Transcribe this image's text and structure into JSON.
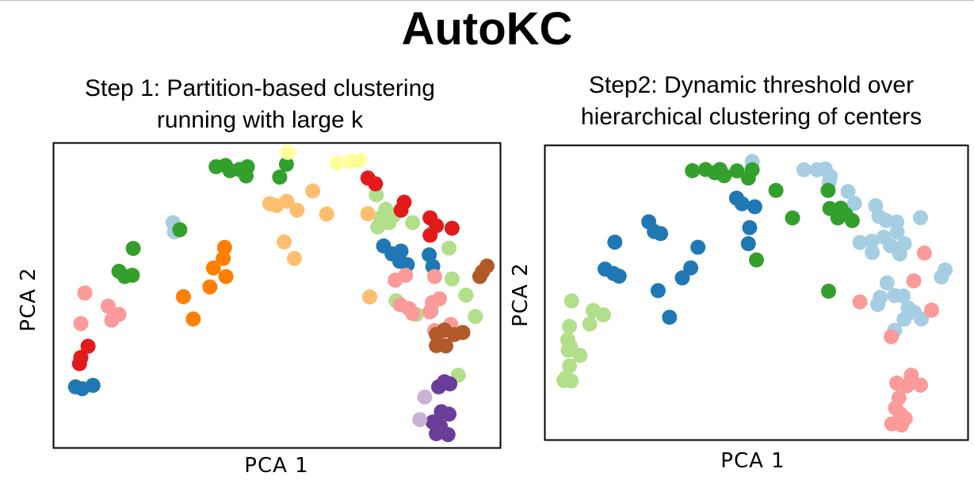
{
  "title": "AutoKC",
  "chart_data": [
    {
      "type": "scatter",
      "title": "Step 1: Partition-based clustering running with large k",
      "title_lines": [
        "Step 1: Partition-based clustering",
        "running with large k"
      ],
      "xlabel": "PCA 1",
      "ylabel": "PCA 2",
      "xlim": [
        0,
        100
      ],
      "ylim": [
        0,
        100
      ],
      "ticks": false,
      "grid": false,
      "legend": false,
      "series": [
        {
          "color": "#1f78b4",
          "points": [
            [
              8.9,
              20.6
            ],
            [
              5.0,
              20.1
            ],
            [
              6.5,
              19.5
            ],
            [
              73.8,
              66.2
            ],
            [
              75.7,
              63.6
            ],
            [
              77.7,
              64.5
            ],
            [
              79.1,
              60.1
            ],
            [
              84.0,
              63.3
            ],
            [
              84.8,
              59.5
            ],
            [
              77.4,
              61.2
            ]
          ]
        },
        {
          "color": "#a6cee3",
          "points": [
            [
              26.8,
              73.8
            ],
            [
              27.1,
              70.8
            ],
            [
              84.5,
              45.0
            ]
          ]
        },
        {
          "color": "#33a02c",
          "points": [
            [
              36.4,
              92.1
            ],
            [
              38.5,
              92.5
            ],
            [
              39.5,
              90.8
            ],
            [
              41.6,
              91.2
            ],
            [
              43.4,
              92.1
            ],
            [
              43.1,
              89.1
            ],
            [
              52.1,
              92.9
            ],
            [
              50.6,
              88.7
            ],
            [
              17.9,
              65.4
            ],
            [
              14.7,
              57.9
            ],
            [
              16.0,
              56.2
            ],
            [
              17.7,
              56.6
            ],
            [
              28.3,
              71.5
            ]
          ]
        },
        {
          "color": "#b2df8a",
          "points": [
            [
              72.2,
              82.9
            ],
            [
              73.2,
              75.4
            ],
            [
              74.3,
              78.2
            ],
            [
              76.1,
              76.2
            ],
            [
              75.0,
              73.8
            ],
            [
              72.5,
              72.4
            ],
            [
              80.3,
              73.8
            ],
            [
              88.4,
              65.5
            ],
            [
              89.1,
              55.4
            ],
            [
              92.2,
              50.1
            ],
            [
              76.6,
              48.3
            ],
            [
              81.1,
              43.8
            ],
            [
              94.3,
              43.1
            ],
            [
              85.6,
              37.2
            ],
            [
              90.5,
              23.9
            ]
          ]
        },
        {
          "color": "#e31a1c",
          "points": [
            [
              7.8,
              33.4
            ],
            [
              6.2,
              29.7
            ],
            [
              5.9,
              27.7
            ],
            [
              70.3,
              88.4
            ],
            [
              72.0,
              86.5
            ],
            [
              78.4,
              80.5
            ],
            [
              77.7,
              77.9
            ],
            [
              84.2,
              75.4
            ],
            [
              84.2,
              69.7
            ],
            [
              85.6,
              72.8
            ],
            [
              89.1,
              72.0
            ]
          ]
        },
        {
          "color": "#fb9a99",
          "points": [
            [
              7.1,
              50.8
            ],
            [
              12.3,
              46.5
            ],
            [
              14.7,
              43.8
            ],
            [
              13.1,
              41.9
            ],
            [
              6.2,
              40.8
            ],
            [
              78.7,
              56.6
            ],
            [
              76.4,
              55.0
            ],
            [
              85.2,
              56.2
            ],
            [
              77.5,
              47.0
            ],
            [
              84.7,
              47.7
            ],
            [
              86.3,
              48.9
            ],
            [
              79.5,
              45.7
            ],
            [
              84.1,
              44.6
            ],
            [
              80.3,
              44.1
            ],
            [
              88.8,
              40.5
            ],
            [
              85.2,
              38.5
            ],
            [
              86.5,
              37.5
            ]
          ]
        },
        {
          "color": "#ff7f00",
          "points": [
            [
              38.3,
              65.7
            ],
            [
              38.0,
              62.1
            ],
            [
              35.8,
              59.0
            ],
            [
              38.6,
              56.2
            ],
            [
              35.0,
              52.8
            ],
            [
              29.1,
              49.6
            ],
            [
              31.3,
              42.3
            ]
          ]
        },
        {
          "color": "#fdbf6f",
          "points": [
            [
              58.0,
              84.2
            ],
            [
              52.2,
              80.8
            ],
            [
              48.4,
              80.0
            ],
            [
              49.9,
              79.4
            ],
            [
              54.5,
              77.9
            ],
            [
              61.1,
              76.6
            ],
            [
              70.3,
              76.7
            ],
            [
              51.6,
              67.5
            ],
            [
              53.9,
              62.1
            ],
            [
              70.7,
              49.5
            ]
          ]
        },
        {
          "color": "#ffff99",
          "points": [
            [
              52.4,
              96.8
            ],
            [
              63.4,
              93.3
            ],
            [
              66.5,
              93.8
            ],
            [
              68.4,
              94.2
            ]
          ]
        },
        {
          "color": "#6a3d9a",
          "points": [
            [
              87.4,
              21.8
            ],
            [
              88.6,
              21.1
            ],
            [
              86.1,
              20.1
            ],
            [
              86.7,
              12.0
            ],
            [
              88.4,
              11.2
            ],
            [
              84.8,
              8.6
            ],
            [
              86.5,
              7.2
            ],
            [
              85.6,
              4.8
            ],
            [
              88.2,
              4.5
            ]
          ]
        },
        {
          "color": "#cab2d6",
          "points": [
            [
              83.0,
              16.8
            ],
            [
              81.9,
              9.4
            ]
          ]
        },
        {
          "color": "#b15928",
          "points": [
            [
              96.9,
              59.6
            ],
            [
              95.9,
              57.8
            ],
            [
              95.3,
              56.2
            ],
            [
              87.4,
              38.7
            ],
            [
              85.6,
              37.3
            ],
            [
              89.6,
              37.2
            ],
            [
              91.5,
              37.9
            ],
            [
              85.6,
              33.6
            ],
            [
              87.7,
              33.5
            ]
          ]
        }
      ]
    },
    {
      "type": "scatter",
      "title": "Step2: Dynamic threshold over hierarchical clustering of centers",
      "title_lines": [
        "Step2: Dynamic threshold over",
        "hierarchical clustering of centers"
      ],
      "xlabel": "PCA 1",
      "ylabel": "PCA 2",
      "xlim": [
        0,
        100
      ],
      "ylim": [
        0,
        100
      ],
      "ticks": false,
      "grid": false,
      "legend": false,
      "series": [
        {
          "color": "#1f78b4",
          "points": [
            [
              16.6,
              67.1
            ],
            [
              24.6,
              74.0
            ],
            [
              25.9,
              70.7
            ],
            [
              27.4,
              70.0
            ],
            [
              14.3,
              58.0
            ],
            [
              16.3,
              56.5
            ],
            [
              17.6,
              55.6
            ],
            [
              36.2,
              65.4
            ],
            [
              34.5,
              58.4
            ],
            [
              32.5,
              55.0
            ],
            [
              26.8,
              50.7
            ],
            [
              29.5,
              41.7
            ],
            [
              45.3,
              82.0
            ],
            [
              46.6,
              80.1
            ],
            [
              49.6,
              79.1
            ],
            [
              48.4,
              72.0
            ],
            [
              48.1,
              66.6
            ]
          ]
        },
        {
          "color": "#a6cee3",
          "points": [
            [
              49.0,
              94.4
            ],
            [
              61.2,
              91.6
            ],
            [
              64.3,
              91.6
            ],
            [
              66.2,
              91.9
            ],
            [
              67.4,
              89.4
            ],
            [
              67.2,
              87.6
            ],
            [
              71.6,
              84.2
            ],
            [
              73.1,
              80.2
            ],
            [
              78.1,
              79.4
            ],
            [
              78.9,
              75.8
            ],
            [
              80.6,
              74.4
            ],
            [
              83.1,
              73.9
            ],
            [
              88.7,
              75.4
            ],
            [
              83.2,
              70.5
            ],
            [
              74.4,
              67.0
            ],
            [
              77.2,
              67.4
            ],
            [
              80.0,
              68.8
            ],
            [
              81.6,
              65.9
            ],
            [
              77.3,
              63.6
            ],
            [
              84.9,
              66.6
            ],
            [
              83.8,
              63.1
            ],
            [
              94.5,
              57.7
            ],
            [
              93.6,
              55.3
            ],
            [
              80.8,
              53.3
            ],
            [
              79.2,
              48.4
            ],
            [
              82.6,
              49.0
            ],
            [
              84.6,
              48.9
            ],
            [
              78.6,
              46.0
            ],
            [
              85.8,
              44.8
            ],
            [
              87.2,
              43.4
            ],
            [
              88.9,
              41.1
            ],
            [
              84.8,
              41.0
            ],
            [
              82.6,
              37.3
            ]
          ]
        },
        {
          "color": "#33a02c",
          "points": [
            [
              34.9,
              91.3
            ],
            [
              38.0,
              91.7
            ],
            [
              40.2,
              90.6
            ],
            [
              42.4,
              89.6
            ],
            [
              41.4,
              91.7
            ],
            [
              45.4,
              91.2
            ],
            [
              49.0,
              91.6
            ],
            [
              48.1,
              88.8
            ],
            [
              54.6,
              84.6
            ],
            [
              66.9,
              84.6
            ],
            [
              67.3,
              78.5
            ],
            [
              69.9,
              78.6
            ],
            [
              69.2,
              75.3
            ],
            [
              71.1,
              76.5
            ],
            [
              72.6,
              74.4
            ],
            [
              58.5,
              75.3
            ],
            [
              50.0,
              61.1
            ],
            [
              67.0,
              50.5
            ]
          ]
        },
        {
          "color": "#b2df8a",
          "points": [
            [
              6.4,
              47.2
            ],
            [
              11.5,
              44.0
            ],
            [
              13.9,
              42.5
            ],
            [
              10.7,
              39.4
            ],
            [
              5.9,
              38.6
            ],
            [
              5.5,
              34.1
            ],
            [
              6.1,
              31.8
            ],
            [
              5.6,
              30.5
            ],
            [
              8.4,
              28.8
            ],
            [
              5.9,
              25.2
            ],
            [
              5.1,
              21.2
            ],
            [
              6.3,
              20.1
            ],
            [
              4.6,
              20.3
            ]
          ]
        },
        {
          "color": "#fb9a99",
          "points": [
            [
              89.6,
              63.4
            ],
            [
              87.1,
              54.0
            ],
            [
              74.4,
              46.9
            ],
            [
              91.3,
              44.1
            ],
            [
              81.8,
              35.1
            ],
            [
              86.5,
              22.1
            ],
            [
              83.1,
              19.4
            ],
            [
              85.5,
              18.5
            ],
            [
              88.7,
              18.7
            ],
            [
              83.6,
              14.4
            ],
            [
              82.8,
              11.0
            ],
            [
              84.0,
              8.9
            ],
            [
              85.1,
              7.4
            ],
            [
              81.9,
              5.6
            ],
            [
              84.2,
              5.2
            ]
          ]
        }
      ]
    }
  ]
}
